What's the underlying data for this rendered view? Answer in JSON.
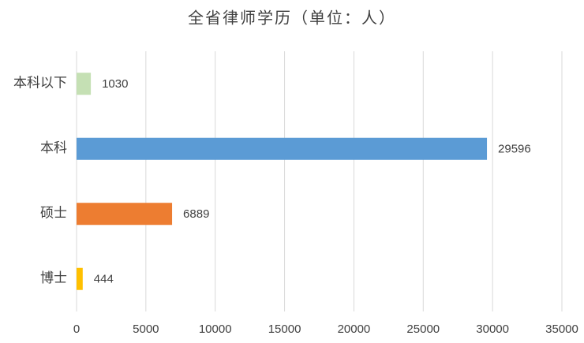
{
  "chart_data": {
    "type": "barh",
    "title": "全省律师学历（单位：人）",
    "categories": [
      "本科以下",
      "本科",
      "硕士",
      "博士"
    ],
    "values": [
      1030,
      29596,
      6889,
      444
    ],
    "colors": [
      "#c5e0b4",
      "#5b9bd5",
      "#ed7d31",
      "#ffc000"
    ],
    "xlim": [
      0,
      35000
    ],
    "xticks": [
      0,
      5000,
      10000,
      15000,
      20000,
      25000,
      30000,
      35000
    ],
    "grid": true
  }
}
